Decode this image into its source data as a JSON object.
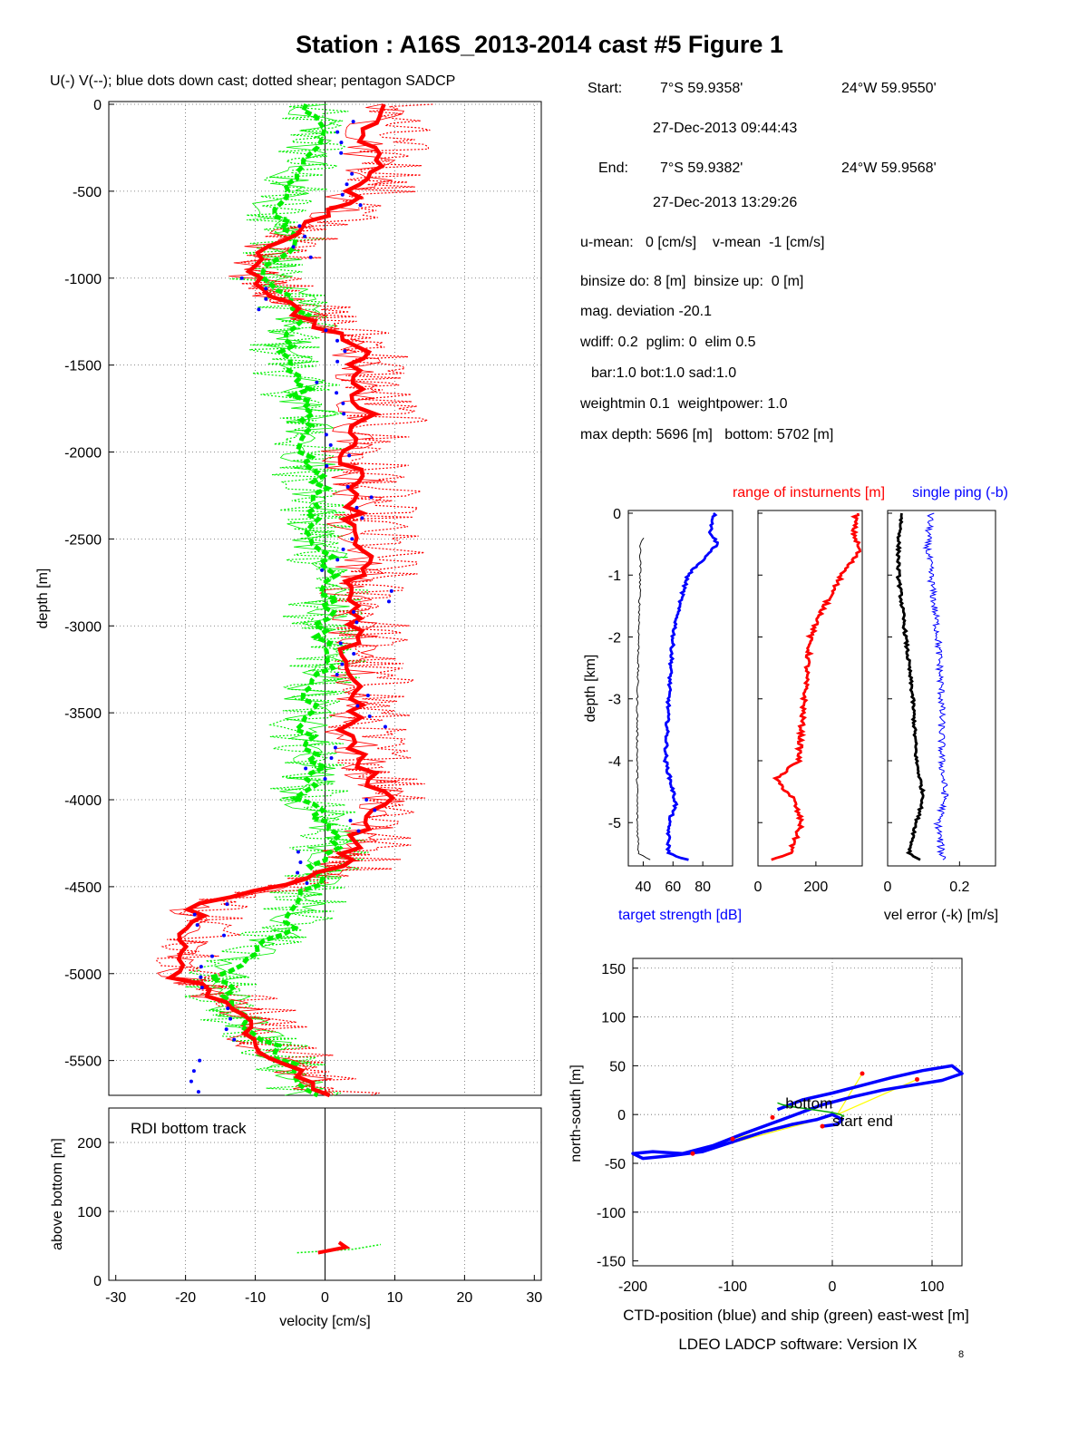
{
  "title": "Station : A16S_2013-2014 cast #5  Figure 1",
  "subtitle": "U(-) V(--); blue dots down cast; dotted shear; pentagon SADCP",
  "info": {
    "start_label": "Start:",
    "start_lat": "7°S 59.9358'",
    "start_lon": "24°W 59.9550'",
    "start_time": "27-Dec-2013 09:44:43",
    "end_label": "End:",
    "end_lat": "7°S 59.9382'",
    "end_lon": "24°W 59.9568'",
    "end_time": "27-Dec-2013 13:29:26",
    "mean_line": "u-mean:   0 [cm/s]    v-mean  -1 [cm/s]",
    "binsize_line": "binsize do: 8 [m]  binsize up:  0 [m]",
    "mag_line": "mag. deviation -20.1",
    "wdiff_line": "wdiff: 0.2  pglim: 0  elim 0.5",
    "bar_line": "bar:1.0 bot:1.0 sad:1.0",
    "weight_line": "weightmin 0.1  weightpower: 1.0",
    "depth_line": "max depth: 5696 [m]   bottom: 5702 [m]"
  },
  "colors": {
    "u": "#ff0000",
    "v": "#00ee00",
    "down": "#0000ff",
    "black": "#000000",
    "ship": "#ffff00"
  },
  "chart_data": [
    {
      "id": "velocity_profile",
      "type": "line",
      "xlabel": "",
      "ylabel": "depth [m]",
      "xlim": [
        -31,
        31
      ],
      "ylim": [
        -5700,
        0
      ],
      "grid": true,
      "yticks": [
        0,
        -500,
        -1000,
        -1500,
        -2000,
        -2500,
        -3000,
        -3500,
        -4000,
        -4500,
        -5000,
        -5500
      ],
      "series": [
        {
          "key": "u",
          "depth": [
            0,
            -200,
            -400,
            -600,
            -800,
            -1000,
            -1200,
            -1400,
            -1600,
            -1800,
            -2000,
            -2200,
            -2400,
            -2600,
            -2800,
            -3000,
            -3200,
            -3400,
            -3600,
            -3800,
            -4000,
            -4200,
            -4400,
            -4600,
            -4800,
            -5000,
            -5200,
            -5400,
            -5600,
            -5700
          ],
          "values": [
            8,
            6,
            7,
            2,
            -8,
            -10,
            -4,
            5,
            4,
            6,
            3,
            5,
            4,
            6,
            3,
            4,
            3,
            5,
            3,
            5,
            9,
            5,
            2,
            -18,
            -20,
            -22,
            -12,
            -10,
            -3,
            0
          ]
        },
        {
          "key": "v",
          "depth": [
            0,
            -200,
            -400,
            -600,
            -800,
            -1000,
            -1200,
            -1400,
            -1600,
            -1800,
            -2000,
            -2200,
            -2400,
            -2600,
            -2800,
            -3000,
            -3200,
            -3400,
            -3600,
            -3800,
            -4000,
            -4200,
            -4400,
            -4600,
            -4800,
            -5000,
            -5200,
            -5400,
            -5600,
            -5700
          ],
          "values": [
            -3,
            -1,
            -4,
            -7,
            -5,
            -8,
            -3,
            -6,
            -4,
            -2,
            -3,
            -1,
            -2,
            0,
            1,
            -1,
            1,
            -2,
            -3,
            -1,
            -3,
            2,
            -1,
            -3,
            -7,
            -15,
            -14,
            -8,
            -4,
            -2
          ]
        },
        {
          "key": "down",
          "depth": [
            -100,
            -400,
            -700,
            -1000,
            -1300,
            -1600,
            -1900,
            -2200,
            -2500,
            -2800,
            -3100,
            -3400,
            -3700,
            -4000,
            -4300,
            -4600,
            -4900,
            -5200,
            -5500
          ],
          "values": [
            2,
            5,
            -2,
            -9,
            3,
            0,
            2,
            4,
            1,
            7,
            2,
            6,
            -1,
            5,
            -4,
            -16,
            -18,
            -12,
            -20
          ]
        }
      ]
    },
    {
      "id": "bottom_track",
      "type": "line",
      "annotation": "RDI bottom track",
      "xlabel": "velocity [cm/s]",
      "ylabel": "above bottom [m]",
      "xlim": [
        -31,
        31
      ],
      "ylim": [
        0,
        250
      ],
      "xticks": [
        -30,
        -20,
        -10,
        0,
        10,
        20,
        30
      ],
      "yticks": [
        0,
        100,
        200
      ],
      "grid": true,
      "series": [
        {
          "key": "u",
          "height": [
            40,
            48,
            55
          ],
          "values": [
            -1,
            3,
            2
          ]
        },
        {
          "key": "v",
          "height": [
            40,
            45,
            52
          ],
          "values": [
            -4,
            4,
            8
          ]
        }
      ]
    },
    {
      "id": "target_strength",
      "type": "line",
      "xlabel": "target strength [dB]",
      "ylabel": "depth [km]",
      "xlim": [
        30,
        100
      ],
      "ylim": [
        -5.7,
        0
      ],
      "xticks": [
        40,
        60,
        80
      ],
      "yticks": [
        0,
        -1,
        -2,
        -3,
        -4,
        -5
      ],
      "series": [
        {
          "key": "up",
          "depth": [
            -0.4,
            -0.5,
            -1,
            -2,
            -3,
            -4,
            -5,
            -5.5,
            -5.6
          ],
          "values": [
            40,
            38,
            38,
            37,
            36,
            36,
            36,
            37,
            45
          ]
        },
        {
          "key": "down",
          "depth": [
            0,
            -0.3,
            -0.5,
            -0.8,
            -1,
            -1.5,
            -2,
            -3,
            -4,
            -4.7,
            -5,
            -5.5,
            -5.6
          ],
          "values": [
            88,
            85,
            90,
            78,
            70,
            64,
            60,
            57,
            55,
            62,
            57,
            57,
            70
          ]
        }
      ]
    },
    {
      "id": "range",
      "type": "line",
      "title": "range of insturnents [m]",
      "xlim": [
        0,
        360
      ],
      "ylim": [
        -5.7,
        0
      ],
      "xticks": [
        0,
        200
      ],
      "series": [
        {
          "key": "range",
          "depth": [
            0,
            -0.3,
            -0.6,
            -1,
            -1.5,
            -2,
            -3,
            -4,
            -4.3,
            -4.6,
            -5,
            -5.5,
            -5.6
          ],
          "values": [
            340,
            330,
            350,
            290,
            230,
            180,
            160,
            140,
            60,
            120,
            150,
            110,
            50
          ]
        }
      ]
    },
    {
      "id": "vel_error",
      "type": "line",
      "title": "single ping (-b)",
      "xlabel": "vel error (-k) [m/s]",
      "xlim": [
        0,
        0.3
      ],
      "ylim": [
        -5.7,
        0
      ],
      "xticks": [
        0,
        0.2
      ],
      "series": [
        {
          "key": "k",
          "depth": [
            0,
            -0.5,
            -1,
            -2,
            -3,
            -4,
            -4.6,
            -5,
            -5.5,
            -5.6
          ],
          "values": [
            0.04,
            0.03,
            0.03,
            0.05,
            0.07,
            0.08,
            0.1,
            0.08,
            0.06,
            0.09
          ]
        },
        {
          "key": "b",
          "depth": [
            0,
            -0.5,
            -1,
            -2,
            -3,
            -4,
            -4.6,
            -5,
            -5.5,
            -5.6
          ],
          "values": [
            0.12,
            0.11,
            0.12,
            0.14,
            0.15,
            0.15,
            0.16,
            0.14,
            0.15,
            0.16
          ]
        }
      ]
    },
    {
      "id": "position",
      "type": "line",
      "xlabel": "CTD-position (blue) and ship (green) east-west [m]",
      "ylabel": "north-south [m]",
      "xlim": [
        -200,
        130
      ],
      "ylim": [
        -155,
        160
      ],
      "xticks": [
        -200,
        -100,
        0,
        100
      ],
      "yticks": [
        150,
        100,
        50,
        0,
        -50,
        -100,
        -150
      ],
      "labels": {
        "bottom": "bottom",
        "end": "end",
        "start": "start"
      },
      "series": [
        {
          "key": "ctd",
          "x": [
            -55,
            -30,
            0,
            30,
            60,
            90,
            120,
            130,
            110,
            80,
            50,
            20,
            -10,
            -50,
            -90,
            -120,
            -150,
            -180,
            -200,
            -190,
            -160,
            -130,
            -100,
            -70,
            -40,
            -15,
            0,
            10,
            5,
            -10
          ],
          "y": [
            5,
            15,
            22,
            30,
            38,
            45,
            50,
            42,
            35,
            30,
            25,
            18,
            10,
            -5,
            -20,
            -32,
            -40,
            -38,
            -40,
            -45,
            -42,
            -38,
            -28,
            -18,
            -10,
            -5,
            0,
            -5,
            -10,
            -12
          ]
        },
        {
          "key": "ship",
          "x": [
            -55,
            -50,
            -40,
            -20,
            0,
            8,
            12
          ],
          "y": [
            12,
            10,
            8,
            5,
            2,
            0,
            -2
          ]
        }
      ]
    }
  ],
  "footer": "LDEO LADCP software: Version IX",
  "footer_sub": "8"
}
